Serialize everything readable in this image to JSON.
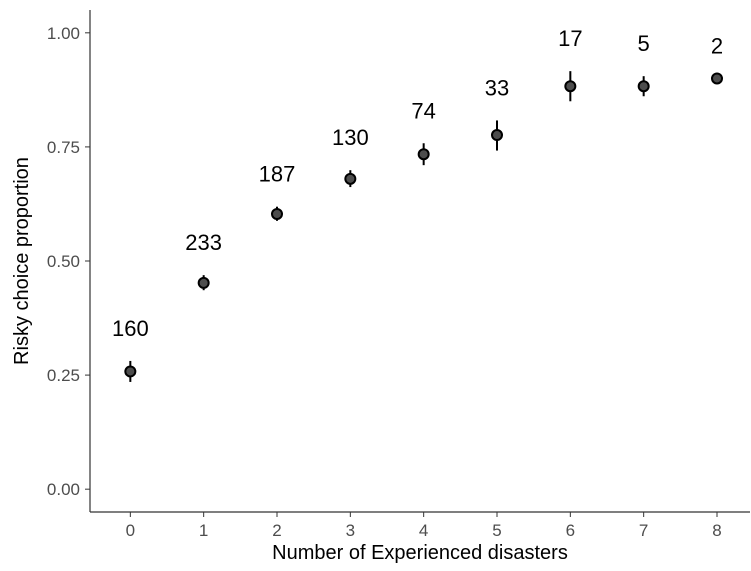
{
  "chart_data": {
    "type": "scatter",
    "xlabel": "Number of Experienced disasters",
    "ylabel": "Risky choice proportion",
    "x_ticks": [
      "0",
      "1",
      "2",
      "3",
      "4",
      "5",
      "6",
      "7",
      "8"
    ],
    "y_ticks": [
      "0.00",
      "0.25",
      "0.50",
      "0.75",
      "1.00"
    ],
    "xlim": [
      -0.55,
      8.45
    ],
    "ylim": [
      -0.05,
      1.05
    ],
    "grid": false,
    "points": [
      {
        "x": 0,
        "y": 0.258,
        "lower": 0.235,
        "upper": 0.281,
        "n_label": "160"
      },
      {
        "x": 1,
        "y": 0.452,
        "lower": 0.436,
        "upper": 0.469,
        "n_label": "233"
      },
      {
        "x": 2,
        "y": 0.603,
        "lower": 0.588,
        "upper": 0.619,
        "n_label": "187"
      },
      {
        "x": 3,
        "y": 0.68,
        "lower": 0.662,
        "upper": 0.699,
        "n_label": "130"
      },
      {
        "x": 4,
        "y": 0.734,
        "lower": 0.71,
        "upper": 0.758,
        "n_label": "74"
      },
      {
        "x": 5,
        "y": 0.776,
        "lower": 0.742,
        "upper": 0.808,
        "n_label": "33"
      },
      {
        "x": 6,
        "y": 0.883,
        "lower": 0.85,
        "upper": 0.916,
        "n_label": "17"
      },
      {
        "x": 7,
        "y": 0.883,
        "lower": 0.861,
        "upper": 0.905,
        "n_label": "5"
      },
      {
        "x": 8,
        "y": 0.9,
        "lower": 0.9,
        "upper": 0.9,
        "n_label": "2"
      }
    ],
    "colors": {
      "point_fill": "#4d4d4d",
      "point_stroke": "#000000",
      "text": "#000000",
      "tick_text": "#4d4d4d"
    }
  }
}
